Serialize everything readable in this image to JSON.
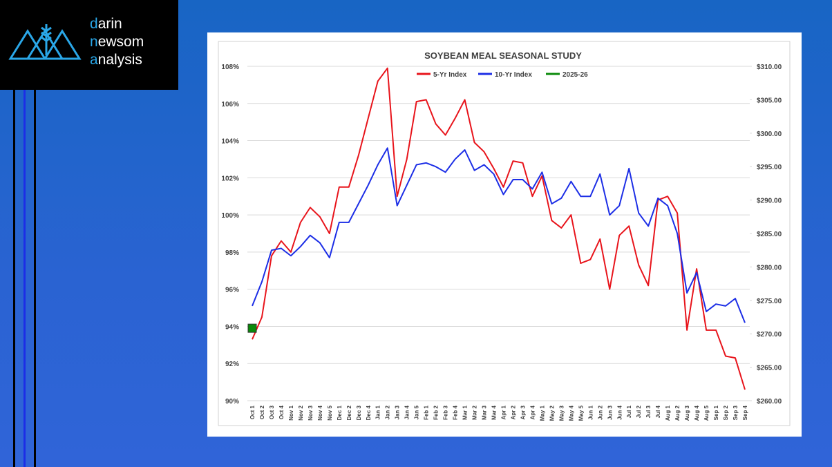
{
  "logo": {
    "lines": [
      "darin",
      "newsom",
      "analysis"
    ]
  },
  "chart_data": {
    "type": "line",
    "title": "SOYBEAN MEAL SEASONAL STUDY",
    "categories": [
      "Oct 1",
      "Oct 2",
      "Oct 3",
      "Oct 4",
      "Nov 1",
      "Nov 2",
      "Nov 3",
      "Nov 4",
      "Nov 5",
      "Dec 1",
      "Dec 2",
      "Dec 3",
      "Dec 4",
      "Jan 1",
      "Jan 2",
      "Jan 3",
      "Jan 4",
      "Jan 5",
      "Feb 1",
      "Feb 2",
      "Feb 3",
      "Feb 4",
      "Mar 1",
      "Mar 2",
      "Mar 3",
      "Mar 4",
      "Apr 1",
      "Apr 2",
      "Apr 3",
      "Apr 4",
      "May 1",
      "May 2",
      "May 3",
      "May 4",
      "May 5",
      "Jun 1",
      "Jun 2",
      "Jun 3",
      "Jun 4",
      "Jul 1",
      "Jul 2",
      "Jul 3",
      "Jul 4",
      "Aug 1",
      "Aug 2",
      "Aug 3",
      "Aug 4",
      "Aug 5",
      "Sep 1",
      "Sep 2",
      "Sep 3",
      "Sep 4"
    ],
    "series": [
      {
        "name": "5-Yr Index",
        "color": "#e8141b",
        "values": [
          93.3,
          94.5,
          97.8,
          98.6,
          98.0,
          99.6,
          100.4,
          99.9,
          99.0,
          101.5,
          101.5,
          103.2,
          105.2,
          107.2,
          107.9,
          101.0,
          103.0,
          106.1,
          106.2,
          104.9,
          104.3,
          105.2,
          106.2,
          103.9,
          103.4,
          102.5,
          101.5,
          102.9,
          102.8,
          101.0,
          102.1,
          99.7,
          99.3,
          100.0,
          97.4,
          97.6,
          98.7,
          96.0,
          98.9,
          99.4,
          97.3,
          96.2,
          100.8,
          101.0,
          100.1,
          93.8,
          97.1,
          93.8,
          93.8,
          92.4,
          92.3,
          90.6
        ]
      },
      {
        "name": "10-Yr Index",
        "color": "#1c2ee6",
        "values": [
          95.1,
          96.4,
          98.1,
          98.2,
          97.8,
          98.3,
          98.9,
          98.5,
          97.7,
          99.6,
          99.6,
          100.6,
          101.6,
          102.7,
          103.6,
          100.5,
          101.6,
          102.7,
          102.8,
          102.6,
          102.3,
          103.0,
          103.5,
          102.4,
          102.7,
          102.2,
          101.1,
          101.9,
          101.9,
          101.4,
          102.3,
          100.6,
          100.9,
          101.8,
          101.0,
          101.0,
          102.2,
          100.0,
          100.5,
          102.5,
          100.1,
          99.4,
          100.9,
          100.5,
          99.0,
          95.8,
          96.9,
          94.8,
          95.2,
          95.1,
          95.5,
          94.2
        ]
      },
      {
        "name": "2025-26",
        "color": "#0a8a0a",
        "values": [
          93.9,
          null,
          null,
          null,
          null,
          null,
          null,
          null,
          null,
          null,
          null,
          null,
          null,
          null,
          null,
          null,
          null,
          null,
          null,
          null,
          null,
          null,
          null,
          null,
          null,
          null,
          null,
          null,
          null,
          null,
          null,
          null,
          null,
          null,
          null,
          null,
          null,
          null,
          null,
          null,
          null,
          null,
          null,
          null,
          null,
          null,
          null,
          null,
          null,
          null,
          null,
          null
        ]
      }
    ],
    "ylim": [
      90,
      108
    ],
    "yticks": [
      {
        "value": 90,
        "label": "90%"
      },
      {
        "value": 92,
        "label": "92%"
      },
      {
        "value": 94,
        "label": "94%"
      },
      {
        "value": 96,
        "label": "96%"
      },
      {
        "value": 98,
        "label": "98%"
      },
      {
        "value": 100,
        "label": "100%"
      },
      {
        "value": 102,
        "label": "102%"
      },
      {
        "value": 104,
        "label": "104%"
      },
      {
        "value": 106,
        "label": "106%"
      },
      {
        "value": 108,
        "label": "108%"
      }
    ],
    "y2lim": [
      260,
      310
    ],
    "y2ticks": [
      {
        "value": 260,
        "label": "$260.00"
      },
      {
        "value": 265,
        "label": "$265.00"
      },
      {
        "value": 270,
        "label": "$270.00"
      },
      {
        "value": 275,
        "label": "$275.00"
      },
      {
        "value": 280,
        "label": "$280.00"
      },
      {
        "value": 285,
        "label": "$285.00"
      },
      {
        "value": 290,
        "label": "$290.00"
      },
      {
        "value": 295,
        "label": "$295.00"
      },
      {
        "value": 300,
        "label": "$300.00"
      },
      {
        "value": 305,
        "label": "$305.00"
      },
      {
        "value": 310,
        "label": "$310.00"
      }
    ],
    "grid": true,
    "legend": "top"
  }
}
